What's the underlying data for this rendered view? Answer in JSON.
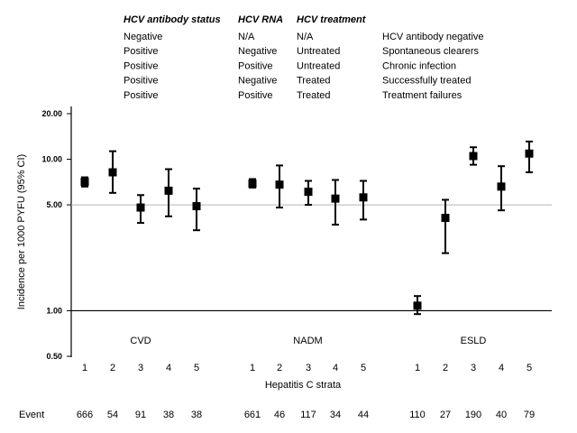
{
  "chart_data": {
    "type": "scatter",
    "ylabel": "Incidence per 1000 PYFU (95% CI)",
    "xlabel": "Hepatitis C strata",
    "y_scale": "log",
    "ylim": [
      0.5,
      20
    ],
    "y_ticks": [
      "20.00",
      "10.00",
      "5.00",
      "1.00",
      "0.50"
    ],
    "reference_lines": [
      5,
      1
    ],
    "grid": false,
    "table": {
      "headers": [
        "HCV antibody status",
        "HCV RNA",
        "HCV treatment",
        ""
      ],
      "rows": [
        [
          "Negative",
          "N/A",
          "N/A",
          "HCV antibody negative"
        ],
        [
          "Positive",
          "Negative",
          "Untreated",
          "Spontaneous clearers"
        ],
        [
          "Positive",
          "Positive",
          "Untreated",
          "Chronic infection"
        ],
        [
          "Positive",
          "Negative",
          "Treated",
          "Successfully treated"
        ],
        [
          "Positive",
          "Positive",
          "Treated",
          "Treatment failures"
        ]
      ]
    },
    "event_label": "Event",
    "groups": [
      {
        "name": "CVD",
        "strata": [
          "1",
          "2",
          "3",
          "4",
          "5"
        ],
        "estimate": [
          7.1,
          8.2,
          4.8,
          6.2,
          4.9
        ],
        "lower": [
          6.6,
          6.0,
          3.8,
          4.2,
          3.4
        ],
        "upper": [
          7.6,
          11.3,
          5.8,
          8.6,
          6.4
        ],
        "events": [
          "666",
          "54",
          "91",
          "38",
          "38"
        ]
      },
      {
        "name": "NADM",
        "strata": [
          "1",
          "2",
          "3",
          "4",
          "5"
        ],
        "estimate": [
          6.9,
          6.8,
          6.1,
          5.5,
          5.6
        ],
        "lower": [
          6.5,
          4.8,
          5.0,
          3.7,
          4.0
        ],
        "upper": [
          7.4,
          9.1,
          7.2,
          7.3,
          7.2
        ],
        "events": [
          "661",
          "46",
          "117",
          "34",
          "44"
        ]
      },
      {
        "name": "ESLD",
        "strata": [
          "1",
          "2",
          "3",
          "4",
          "5"
        ],
        "estimate": [
          1.08,
          4.1,
          10.5,
          6.6,
          10.9
        ],
        "lower": [
          0.95,
          2.4,
          9.2,
          4.6,
          8.2
        ],
        "upper": [
          1.25,
          5.4,
          12.0,
          9.0,
          13.1
        ],
        "events": [
          "110",
          "27",
          "190",
          "40",
          "79"
        ]
      }
    ]
  }
}
